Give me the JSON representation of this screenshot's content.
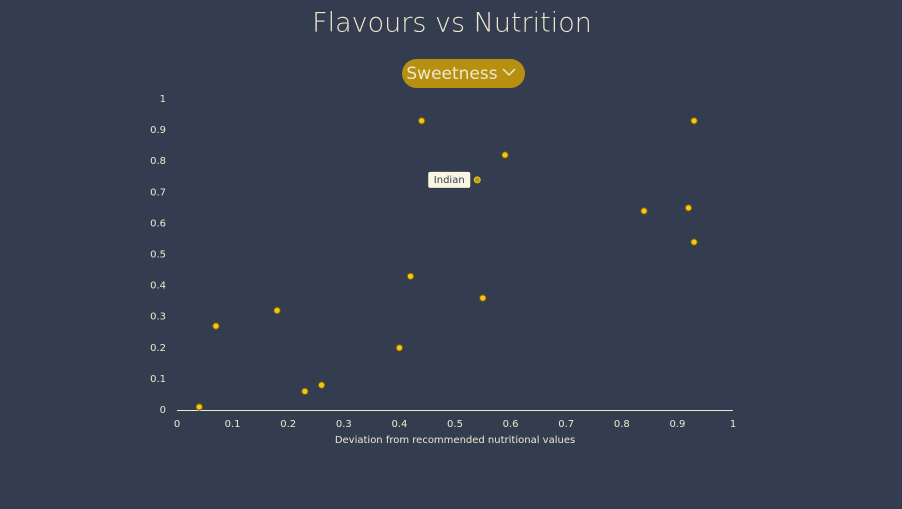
{
  "controls": {
    "dropdown": "Sweetness"
  },
  "chart_data": {
    "type": "scatter",
    "title": "Flavours vs Nutrition",
    "x_label": "Deviation from recommended nutritional values",
    "x": [
      0.04,
      0.07,
      0.18,
      0.23,
      0.26,
      0.4,
      0.42,
      0.44,
      0.54,
      0.55,
      0.59,
      0.84,
      0.92,
      0.93,
      0.93
    ],
    "y": [
      0.01,
      0.27,
      0.32,
      0.06,
      0.08,
      0.2,
      0.43,
      0.93,
      0.74,
      0.36,
      0.82,
      0.64,
      0.65,
      0.93,
      0.54
    ],
    "labels": [
      null,
      null,
      null,
      null,
      null,
      null,
      null,
      null,
      "Indian",
      null,
      null,
      null,
      null,
      null,
      null
    ],
    "color": "#f5c518",
    "xlim": [
      0,
      1
    ],
    "ylim": [
      0,
      1
    ],
    "xticks": [
      0,
      0.1,
      0.2,
      0.3,
      0.4,
      0.5,
      0.6,
      0.7,
      0.8,
      0.9,
      1
    ],
    "yticks": [
      0,
      0.1,
      0.2,
      0.3,
      0.4,
      0.5,
      0.6,
      0.7,
      0.8,
      0.9,
      1
    ],
    "grid": false
  }
}
